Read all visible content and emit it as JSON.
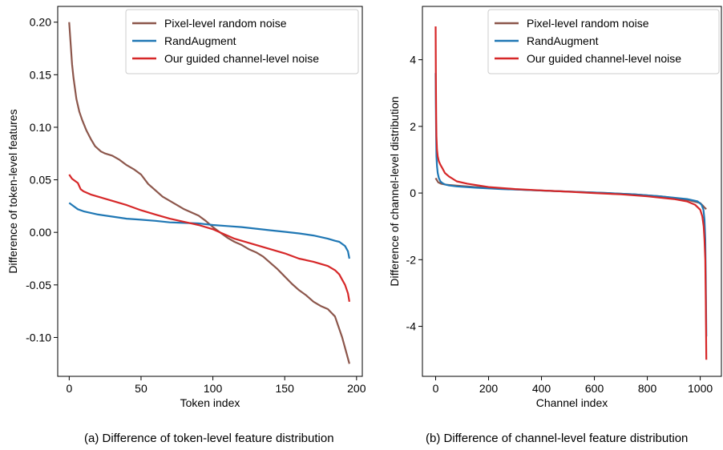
{
  "captions": {
    "left": "(a) Difference of token-level feature distribution",
    "right": "(b) Difference of channel-level feature distribution"
  },
  "colors": {
    "pixel": "#8c564b",
    "randaug": "#1f77b4",
    "guided": "#d62728"
  },
  "chart_data": [
    {
      "type": "line",
      "title": "",
      "xlabel": "Token index",
      "ylabel": "Difference of token-level features",
      "xlim": [
        -8,
        204
      ],
      "ylim": [
        -0.137,
        0.215
      ],
      "xticks": [
        0,
        50,
        100,
        150,
        200
      ],
      "xtick_labels": [
        "0",
        "50",
        "100",
        "150",
        "200"
      ],
      "yticks": [
        -0.1,
        -0.05,
        0.0,
        0.05,
        0.1,
        0.15,
        0.2
      ],
      "ytick_labels": [
        "-0.10",
        "-0.05",
        "0.00",
        "0.05",
        "0.10",
        "0.15",
        "0.20"
      ],
      "legend": "top-right",
      "grid": false,
      "series": [
        {
          "name": "Pixel-level random noise",
          "color": "#8c564b",
          "x": [
            0,
            2,
            3,
            5,
            7,
            9,
            12,
            15,
            18,
            22,
            25,
            30,
            35,
            40,
            45,
            50,
            55,
            60,
            65,
            70,
            75,
            80,
            85,
            90,
            95,
            100,
            105,
            110,
            115,
            120,
            125,
            130,
            135,
            140,
            145,
            150,
            155,
            160,
            165,
            170,
            175,
            180,
            185,
            190,
            193,
            195
          ],
          "y": [
            0.2,
            0.16,
            0.147,
            0.127,
            0.115,
            0.107,
            0.097,
            0.089,
            0.082,
            0.077,
            0.075,
            0.073,
            0.069,
            0.064,
            0.06,
            0.055,
            0.046,
            0.04,
            0.034,
            0.03,
            0.026,
            0.022,
            0.019,
            0.016,
            0.011,
            0.005,
            0.0,
            -0.005,
            -0.009,
            -0.012,
            -0.016,
            -0.019,
            -0.023,
            -0.029,
            -0.035,
            -0.042,
            -0.049,
            -0.055,
            -0.06,
            -0.066,
            -0.07,
            -0.073,
            -0.08,
            -0.1,
            -0.115,
            -0.125
          ]
        },
        {
          "name": "RandAugment",
          "color": "#1f77b4",
          "x": [
            0,
            3,
            6,
            10,
            20,
            30,
            40,
            50,
            60,
            70,
            80,
            90,
            100,
            110,
            120,
            130,
            140,
            150,
            160,
            170,
            180,
            185,
            188,
            190,
            192,
            194,
            195
          ],
          "y": [
            0.028,
            0.025,
            0.022,
            0.02,
            0.017,
            0.015,
            0.013,
            0.012,
            0.011,
            0.0095,
            0.009,
            0.0085,
            0.007,
            0.006,
            0.005,
            0.0035,
            0.002,
            0.0005,
            -0.001,
            -0.003,
            -0.006,
            -0.008,
            -0.009,
            -0.011,
            -0.013,
            -0.018,
            -0.025
          ]
        },
        {
          "name": "Our guided channel-level noise",
          "color": "#d62728",
          "x": [
            0,
            2,
            4,
            6,
            8,
            10,
            15,
            20,
            30,
            40,
            50,
            60,
            70,
            80,
            90,
            100,
            105,
            110,
            115,
            120,
            130,
            140,
            150,
            160,
            170,
            180,
            185,
            188,
            190,
            192,
            194,
            195
          ],
          "y": [
            0.055,
            0.051,
            0.049,
            0.047,
            0.041,
            0.039,
            0.036,
            0.034,
            0.03,
            0.026,
            0.021,
            0.017,
            0.013,
            0.01,
            0.007,
            0.003,
            0.0,
            -0.003,
            -0.006,
            -0.008,
            -0.012,
            -0.016,
            -0.02,
            -0.025,
            -0.028,
            -0.032,
            -0.036,
            -0.04,
            -0.045,
            -0.05,
            -0.058,
            -0.066
          ]
        }
      ]
    },
    {
      "type": "line",
      "title": "",
      "xlabel": "Channel index",
      "ylabel": "Difference of channel-level  distribution",
      "xlim": [
        -50,
        1080
      ],
      "ylim": [
        -5.5,
        5.6
      ],
      "xticks": [
        0,
        200,
        400,
        600,
        800,
        1000
      ],
      "xtick_labels": [
        "0",
        "200",
        "400",
        "600",
        "800",
        "1000"
      ],
      "yticks": [
        -4,
        -2,
        0,
        2,
        4
      ],
      "ytick_labels": [
        "-4",
        "-2",
        "0",
        "2",
        "4"
      ],
      "legend": "top-right",
      "grid": false,
      "series": [
        {
          "name": "Pixel-level random noise",
          "color": "#8c564b",
          "x": [
            0,
            5,
            10,
            20,
            40,
            80,
            150,
            250,
            350,
            450,
            550,
            650,
            750,
            850,
            950,
            1000,
            1010,
            1018,
            1023
          ],
          "y": [
            0.45,
            0.38,
            0.32,
            0.28,
            0.25,
            0.22,
            0.18,
            0.13,
            0.09,
            0.06,
            0.03,
            0.0,
            -0.04,
            -0.1,
            -0.2,
            -0.3,
            -0.38,
            -0.45,
            -0.48
          ]
        },
        {
          "name": "RandAugment",
          "color": "#1f77b4",
          "x": [
            0,
            1,
            2,
            3,
            5,
            8,
            12,
            18,
            25,
            35,
            50,
            80,
            150,
            250,
            350,
            450,
            550,
            650,
            750,
            850,
            950,
            990,
            1005,
            1012,
            1016,
            1019,
            1021,
            1023
          ],
          "y": [
            3.6,
            2.6,
            1.6,
            1.1,
            0.8,
            0.6,
            0.45,
            0.35,
            0.3,
            0.26,
            0.23,
            0.2,
            0.16,
            0.12,
            0.09,
            0.06,
            0.03,
            0.0,
            -0.04,
            -0.1,
            -0.18,
            -0.25,
            -0.35,
            -0.5,
            -0.8,
            -1.4,
            -2.5,
            -4.3
          ]
        },
        {
          "name": "Our guided channel-level noise",
          "color": "#d62728",
          "x": [
            0,
            1,
            2,
            3,
            5,
            8,
            12,
            18,
            25,
            35,
            50,
            80,
            120,
            200,
            300,
            400,
            500,
            600,
            700,
            800,
            900,
            950,
            980,
            1000,
            1008,
            1013,
            1016,
            1019,
            1021,
            1023
          ],
          "y": [
            5.0,
            3.4,
            2.2,
            1.7,
            1.3,
            1.1,
            0.95,
            0.85,
            0.75,
            0.6,
            0.5,
            0.35,
            0.28,
            0.18,
            0.12,
            0.08,
            0.04,
            0.0,
            -0.04,
            -0.1,
            -0.18,
            -0.25,
            -0.35,
            -0.5,
            -0.7,
            -1.0,
            -1.4,
            -2.0,
            -3.2,
            -5.0
          ]
        }
      ]
    }
  ]
}
